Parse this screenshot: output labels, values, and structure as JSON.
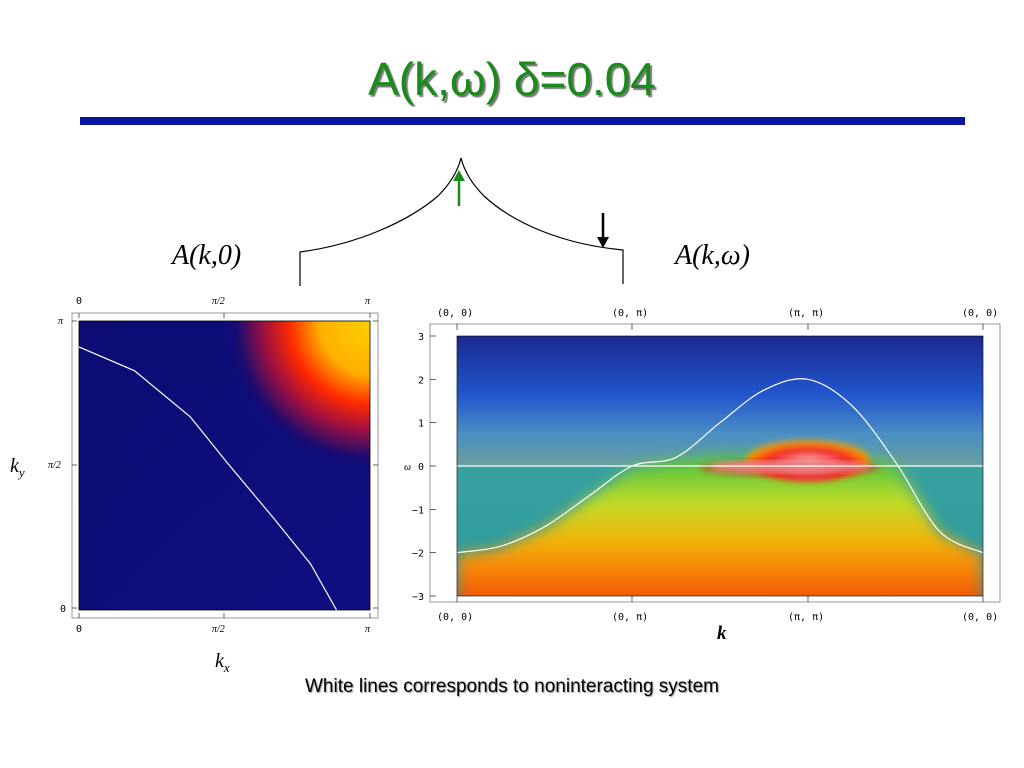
{
  "slide": {
    "title": "A(k,ω)  δ=0.04",
    "label_left": "A(k,0)",
    "label_right": "A(k,ω)",
    "caption": "White lines corresponds to noninteracting system",
    "colors": {
      "title": "#1a8a1a",
      "rule": "#0a16a0",
      "arrow_up": "#1a8a1a",
      "arrow_down": "#000000"
    }
  },
  "chart_data": [
    {
      "type": "heatmap",
      "title": "",
      "xlabel": "k_x",
      "ylabel": "k_y",
      "x_ticks": [
        "0",
        "π/2",
        "π"
      ],
      "y_ticks": [
        "0",
        "π/2",
        "π"
      ],
      "xlim": [
        0,
        3.1416
      ],
      "ylim": [
        0,
        3.1416
      ],
      "overlay_line": {
        "color": "white",
        "description_values": [
          [
            0,
            2.86
          ],
          [
            0.6,
            2.6
          ],
          [
            1.2,
            2.1
          ],
          [
            1.6,
            1.6
          ],
          [
            2.1,
            1.0
          ],
          [
            2.5,
            0.5
          ],
          [
            2.78,
            0
          ]
        ]
      },
      "colormap": [
        "#0a0a78",
        "#cc0000",
        "#ff2a00",
        "#ffcc00"
      ]
    },
    {
      "type": "heatmap",
      "title": "",
      "xlabel": "k",
      "ylabel": "ω",
      "x_ticks": [
        "(0, 0)",
        "(0, π)",
        "(π, π)",
        "(0, 0)"
      ],
      "y_ticks": [
        "3",
        "2",
        "1",
        "0",
        "−1",
        "−2",
        "−3"
      ],
      "ylim": [
        -3,
        3
      ],
      "x_path": [
        "(0,0)",
        "(0,π)",
        "(π,π)",
        "(0,0)"
      ],
      "band_dispersion": {
        "color": "white",
        "x": [
          0.0,
          0.25,
          0.5,
          0.75,
          1.0,
          1.25,
          1.5,
          1.75,
          2.0,
          2.25,
          2.5,
          2.75,
          3.0
        ],
        "y": [
          -2.0,
          -1.85,
          -1.4,
          -0.7,
          0.0,
          0.2,
          1.0,
          1.75,
          2.0,
          1.4,
          0.1,
          -1.5,
          -2.0
        ]
      },
      "fermi_level": 0
    }
  ]
}
